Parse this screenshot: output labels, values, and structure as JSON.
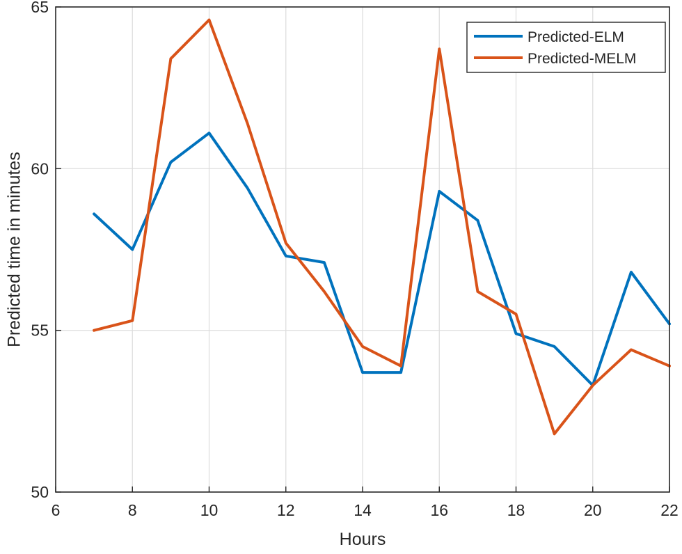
{
  "chart_data": {
    "type": "line",
    "title": "",
    "xlabel": "Hours",
    "ylabel": "Predicted time in minutes",
    "xlim": [
      6,
      22
    ],
    "ylim": [
      50,
      65
    ],
    "xticks": [
      6,
      8,
      10,
      12,
      14,
      16,
      18,
      20,
      22
    ],
    "yticks": [
      50,
      55,
      60,
      65
    ],
    "grid": true,
    "legend_position": "top-right",
    "x": [
      7,
      8,
      9,
      10,
      11,
      12,
      13,
      14,
      15,
      16,
      17,
      18,
      19,
      20,
      21,
      22
    ],
    "series": [
      {
        "name": "Predicted-ELM",
        "color": "#0072BD",
        "values": [
          58.6,
          57.5,
          60.2,
          61.1,
          59.4,
          57.3,
          57.1,
          53.7,
          53.7,
          59.3,
          58.4,
          54.9,
          54.5,
          53.3,
          56.8,
          55.2
        ]
      },
      {
        "name": "Predicted-MELM",
        "color": "#D95319",
        "values": [
          55.0,
          55.3,
          63.4,
          64.6,
          61.4,
          57.7,
          56.2,
          54.5,
          53.9,
          63.7,
          56.2,
          55.5,
          51.8,
          53.3,
          54.4,
          53.9
        ]
      }
    ]
  }
}
